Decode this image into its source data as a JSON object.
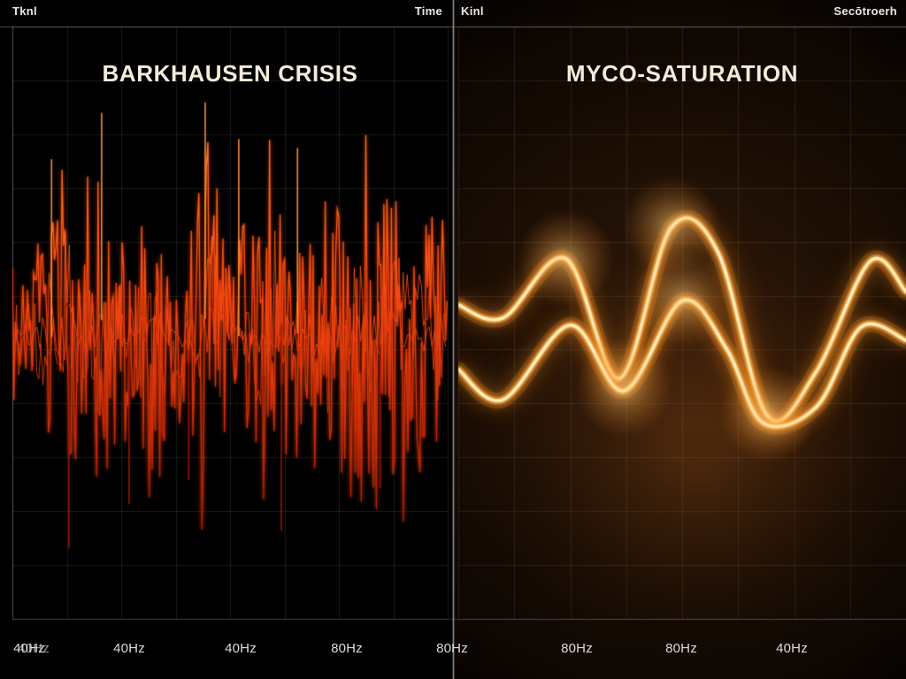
{
  "header": {
    "left_corner": "Tknl",
    "left_panel_unit": "Time",
    "right_panel_unit": "Kinl",
    "right_corner": "Secōtroerh"
  },
  "colors": {
    "background": "#000000",
    "grid": "rgba(255,255,255,0.10)",
    "grid_warm": "rgba(255,228,195,0.10)",
    "divider": "rgba(175,175,175,0.85)",
    "frame": "rgba(255,255,255,0.30)",
    "title_text": "#f2ecd8",
    "tick_text": "#dcdcdc",
    "noise_bright": "#ff9532",
    "noise_mid": "#ff4a12",
    "noise_deep": "#a81500",
    "wave_core": "#fff3d2",
    "wave_gold": "#ffd98c",
    "wave_glow": "#ff9a2e",
    "right_bg_warm": "#30190a"
  },
  "chart_data": [
    {
      "type": "line",
      "title": "BARKHAUSEN CRISIS",
      "top_right_label": "Time",
      "x_tick_labels": [
        "40Hz",
        "40Hz",
        "40Hz",
        "80Hz",
        "80Hz"
      ],
      "xlabel": "",
      "ylabel": "",
      "ylim": [
        -1,
        1
      ],
      "grid": true,
      "legend_position": "none",
      "series": [
        {
          "name": "barkhausen-noise-burst",
          "style": "stochastic-burst",
          "baseline": 0.522,
          "noise_seed": 1337,
          "envelope": [
            [
              0.0,
              0.18
            ],
            [
              0.04,
              0.12
            ],
            [
              0.08,
              0.22
            ],
            [
              0.12,
              0.33
            ],
            [
              0.16,
              0.16
            ],
            [
              0.2,
              0.36
            ],
            [
              0.24,
              0.21
            ],
            [
              0.28,
              0.15
            ],
            [
              0.32,
              0.3
            ],
            [
              0.36,
              0.22
            ],
            [
              0.4,
              0.13
            ],
            [
              0.44,
              0.37
            ],
            [
              0.48,
              0.24
            ],
            [
              0.52,
              0.18
            ],
            [
              0.56,
              0.27
            ],
            [
              0.6,
              0.34
            ],
            [
              0.64,
              0.19
            ],
            [
              0.68,
              0.15
            ],
            [
              0.72,
              0.25
            ],
            [
              0.76,
              0.21
            ],
            [
              0.8,
              0.3
            ],
            [
              0.84,
              0.24
            ],
            [
              0.88,
              0.33
            ],
            [
              0.92,
              0.18
            ],
            [
              0.96,
              0.21
            ],
            [
              1.0,
              0.19
            ]
          ],
          "extreme_points": [
            [
              0.205,
              0.146
            ],
            [
              0.443,
              0.128
            ],
            [
              0.09,
              0.224
            ],
            [
              0.655,
              0.205
            ],
            [
              0.52,
              0.19
            ],
            [
              0.13,
              0.881
            ],
            [
              0.618,
              0.851
            ],
            [
              0.845,
              0.779
            ],
            [
              0.405,
              0.766
            ],
            [
              0.268,
              0.806
            ]
          ]
        }
      ]
    },
    {
      "type": "line",
      "title": "MYCO-SATURATION",
      "top_right_label": "Secōtroerh",
      "x_tick_labels": [
        "80Hz",
        "80Hz",
        "40Hz"
      ],
      "xlabel": "",
      "ylabel": "",
      "ylim": [
        -1,
        1
      ],
      "grid": true,
      "legend_position": "none",
      "series": [
        {
          "name": "saturation-wave-upper",
          "style": "smooth-glow",
          "points": [
            [
              0.0,
              0.47
            ],
            [
              0.1,
              0.492
            ],
            [
              0.24,
              0.392
            ],
            [
              0.36,
              0.594
            ],
            [
              0.475,
              0.34
            ],
            [
              0.58,
              0.381
            ],
            [
              0.69,
              0.657
            ],
            [
              0.8,
              0.582
            ],
            [
              0.92,
              0.396
            ],
            [
              1.0,
              0.448
            ]
          ]
        },
        {
          "name": "saturation-wave-lower",
          "style": "smooth-glow",
          "points": [
            [
              0.0,
              0.579
            ],
            [
              0.1,
              0.63
            ],
            [
              0.25,
              0.504
            ],
            [
              0.37,
              0.615
            ],
            [
              0.5,
              0.463
            ],
            [
              0.6,
              0.545
            ],
            [
              0.68,
              0.669
            ],
            [
              0.8,
              0.642
            ],
            [
              0.9,
              0.507
            ],
            [
              1.0,
              0.53
            ]
          ]
        }
      ],
      "glow_spots": [
        [
          0.24,
          0.392
        ],
        [
          0.475,
          0.335
        ],
        [
          0.69,
          0.655
        ],
        [
          0.37,
          0.61
        ],
        [
          0.5,
          0.46
        ]
      ]
    }
  ]
}
